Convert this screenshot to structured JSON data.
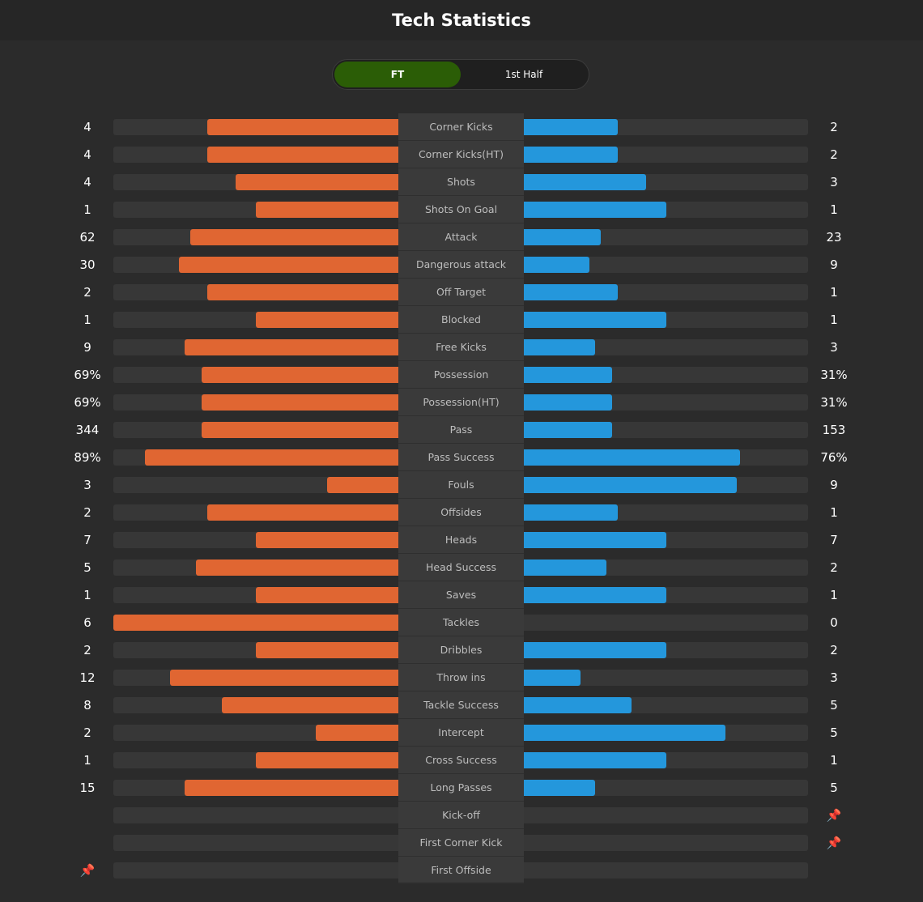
{
  "header": {
    "title": "Tech Statistics"
  },
  "tabs": [
    {
      "label": "FT",
      "active": true
    },
    {
      "label": "1st Half",
      "active": false
    }
  ],
  "colors": {
    "home": "#e06632",
    "away": "#2497dc",
    "active_tab": "#2b5d06",
    "marker": "#f2c218"
  },
  "stats": [
    {
      "label": "Corner Kicks",
      "home": "4",
      "away": "2",
      "home_share": 0.67
    },
    {
      "label": "Corner Kicks(HT)",
      "home": "4",
      "away": "2",
      "home_share": 0.67
    },
    {
      "label": "Shots",
      "home": "4",
      "away": "3",
      "home_share": 0.57
    },
    {
      "label": "Shots On Goal",
      "home": "1",
      "away": "1",
      "home_share": 0.5
    },
    {
      "label": "Attack",
      "home": "62",
      "away": "23",
      "home_share": 0.73
    },
    {
      "label": "Dangerous attack",
      "home": "30",
      "away": "9",
      "home_share": 0.77
    },
    {
      "label": "Off Target",
      "home": "2",
      "away": "1",
      "home_share": 0.67
    },
    {
      "label": "Blocked",
      "home": "1",
      "away": "1",
      "home_share": 0.5
    },
    {
      "label": "Free Kicks",
      "home": "9",
      "away": "3",
      "home_share": 0.75
    },
    {
      "label": "Possession",
      "home": "69%",
      "away": "31%",
      "home_share": 0.69
    },
    {
      "label": "Possession(HT)",
      "home": "69%",
      "away": "31%",
      "home_share": 0.69
    },
    {
      "label": "Pass",
      "home": "344",
      "away": "153",
      "home_share": 0.69
    },
    {
      "label": "Pass Success",
      "home": "89%",
      "away": "76%",
      "home_share": 0.89,
      "away_share": 0.76
    },
    {
      "label": "Fouls",
      "home": "3",
      "away": "9",
      "home_share": 0.25,
      "away_share": 0.75
    },
    {
      "label": "Offsides",
      "home": "2",
      "away": "1",
      "home_share": 0.67
    },
    {
      "label": "Heads",
      "home": "7",
      "away": "7",
      "home_share": 0.5
    },
    {
      "label": "Head Success",
      "home": "5",
      "away": "2",
      "home_share": 0.71
    },
    {
      "label": "Saves",
      "home": "1",
      "away": "1",
      "home_share": 0.5
    },
    {
      "label": "Tackles",
      "home": "6",
      "away": "0",
      "home_share": 1.0
    },
    {
      "label": "Dribbles",
      "home": "2",
      "away": "2",
      "home_share": 0.5
    },
    {
      "label": "Throw ins",
      "home": "12",
      "away": "3",
      "home_share": 0.8
    },
    {
      "label": "Tackle Success",
      "home": "8",
      "away": "5",
      "home_share": 0.62
    },
    {
      "label": "Intercept",
      "home": "2",
      "away": "5",
      "home_share": 0.29,
      "away_share": 0.71
    },
    {
      "label": "Cross Success",
      "home": "1",
      "away": "1",
      "home_share": 0.5
    },
    {
      "label": "Long Passes",
      "home": "15",
      "away": "5",
      "home_share": 0.75
    },
    {
      "label": "Kick-off",
      "home": "",
      "away": "",
      "home_marker": false,
      "away_marker": true,
      "home_share": 0,
      "away_share": 0
    },
    {
      "label": "First Corner Kick",
      "home": "",
      "away": "",
      "home_marker": false,
      "away_marker": true,
      "home_share": 0,
      "away_share": 0
    },
    {
      "label": "First Offside",
      "home": "",
      "away": "",
      "home_marker": true,
      "away_marker": false,
      "home_share": 0,
      "away_share": 0
    }
  ]
}
